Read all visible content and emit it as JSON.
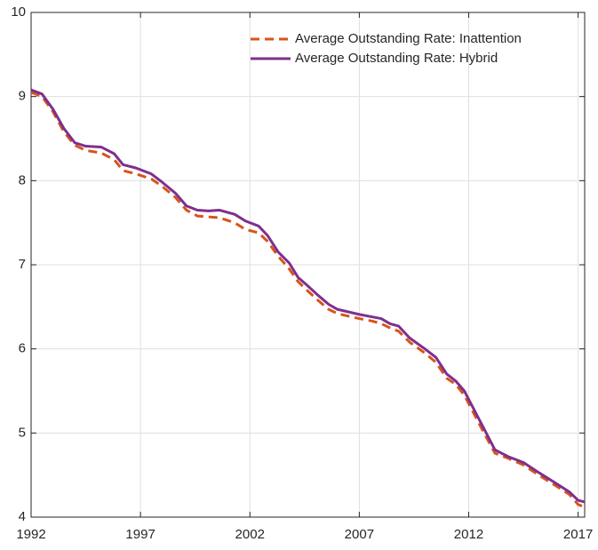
{
  "chart_data": {
    "type": "line",
    "x": [
      1992,
      1992.5,
      1993,
      1993.5,
      1994,
      1994.5,
      1995.2,
      1995.8,
      1996.2,
      1996.8,
      1997.5,
      1998,
      1998.6,
      1999.1,
      1999.6,
      2000.1,
      2000.6,
      2001.3,
      2001.8,
      2002.4,
      2002.8,
      2003.3,
      2003.8,
      2004.2,
      2004.6,
      2005.1,
      2005.6,
      2006,
      2007,
      2007.6,
      2008,
      2008.4,
      2008.8,
      2009.3,
      2010,
      2010.5,
      2011,
      2011.4,
      2011.8,
      2012.2,
      2012.7,
      2013.2,
      2013.8,
      2014.5,
      2015.2,
      2016,
      2016.6,
      2017,
      2017.3
    ],
    "series": [
      {
        "name": "Average Outstanding Rate: Inattention",
        "color": "#D95319",
        "dashed": true,
        "values": [
          9.05,
          9.0,
          8.82,
          8.58,
          8.42,
          8.36,
          8.33,
          8.25,
          8.12,
          8.08,
          8.02,
          7.93,
          7.8,
          7.65,
          7.58,
          7.57,
          7.56,
          7.5,
          7.42,
          7.38,
          7.28,
          7.1,
          6.95,
          6.8,
          6.7,
          6.58,
          6.47,
          6.42,
          6.36,
          6.33,
          6.3,
          6.25,
          6.21,
          6.08,
          5.95,
          5.84,
          5.65,
          5.58,
          5.45,
          5.25,
          5.0,
          4.76,
          4.7,
          4.62,
          4.5,
          4.37,
          4.27,
          4.15,
          4.12
        ]
      },
      {
        "name": "Average Outstanding Rate: Hybrid",
        "color": "#7E2F8E",
        "dashed": false,
        "values": [
          9.08,
          9.03,
          8.85,
          8.62,
          8.45,
          8.41,
          8.4,
          8.32,
          8.19,
          8.15,
          8.08,
          7.98,
          7.85,
          7.7,
          7.65,
          7.64,
          7.65,
          7.6,
          7.52,
          7.46,
          7.35,
          7.15,
          7.02,
          6.85,
          6.76,
          6.64,
          6.53,
          6.47,
          6.41,
          6.38,
          6.36,
          6.3,
          6.27,
          6.13,
          6.0,
          5.9,
          5.7,
          5.62,
          5.5,
          5.3,
          5.05,
          4.8,
          4.72,
          4.65,
          4.53,
          4.4,
          4.3,
          4.2,
          4.18
        ]
      }
    ],
    "xlim": [
      1992,
      2017.3
    ],
    "xticks": [
      1992,
      1997,
      2002,
      2007,
      2012,
      2017
    ],
    "ylim": [
      4,
      10
    ],
    "yticks": [
      4,
      5,
      6,
      7,
      8,
      9,
      10
    ],
    "grid": true,
    "legend": "top-right"
  }
}
